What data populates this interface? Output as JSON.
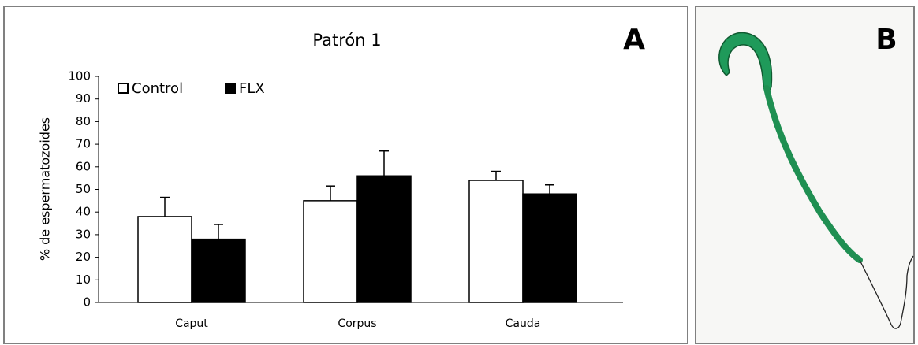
{
  "chart_data": {
    "type": "bar",
    "title": "Patrón 1",
    "ylabel": "% de espermatozoides",
    "categories": [
      "Caput",
      "Corpus",
      "Cauda"
    ],
    "series": [
      {
        "name": "Control",
        "color": "#ffffff",
        "values": [
          38,
          45,
          54
        ],
        "errors": [
          8.5,
          6.5,
          4
        ]
      },
      {
        "name": "FLX",
        "color": "#000000",
        "values": [
          28,
          56,
          48
        ],
        "errors": [
          6.5,
          11,
          4
        ]
      }
    ],
    "ylim": [
      0,
      100
    ],
    "yticks": [
      0,
      10,
      20,
      30,
      40,
      50,
      60,
      70,
      80,
      90,
      100
    ],
    "grid": false,
    "legend": "top-left"
  },
  "panel_labels": [
    "A",
    "B"
  ]
}
